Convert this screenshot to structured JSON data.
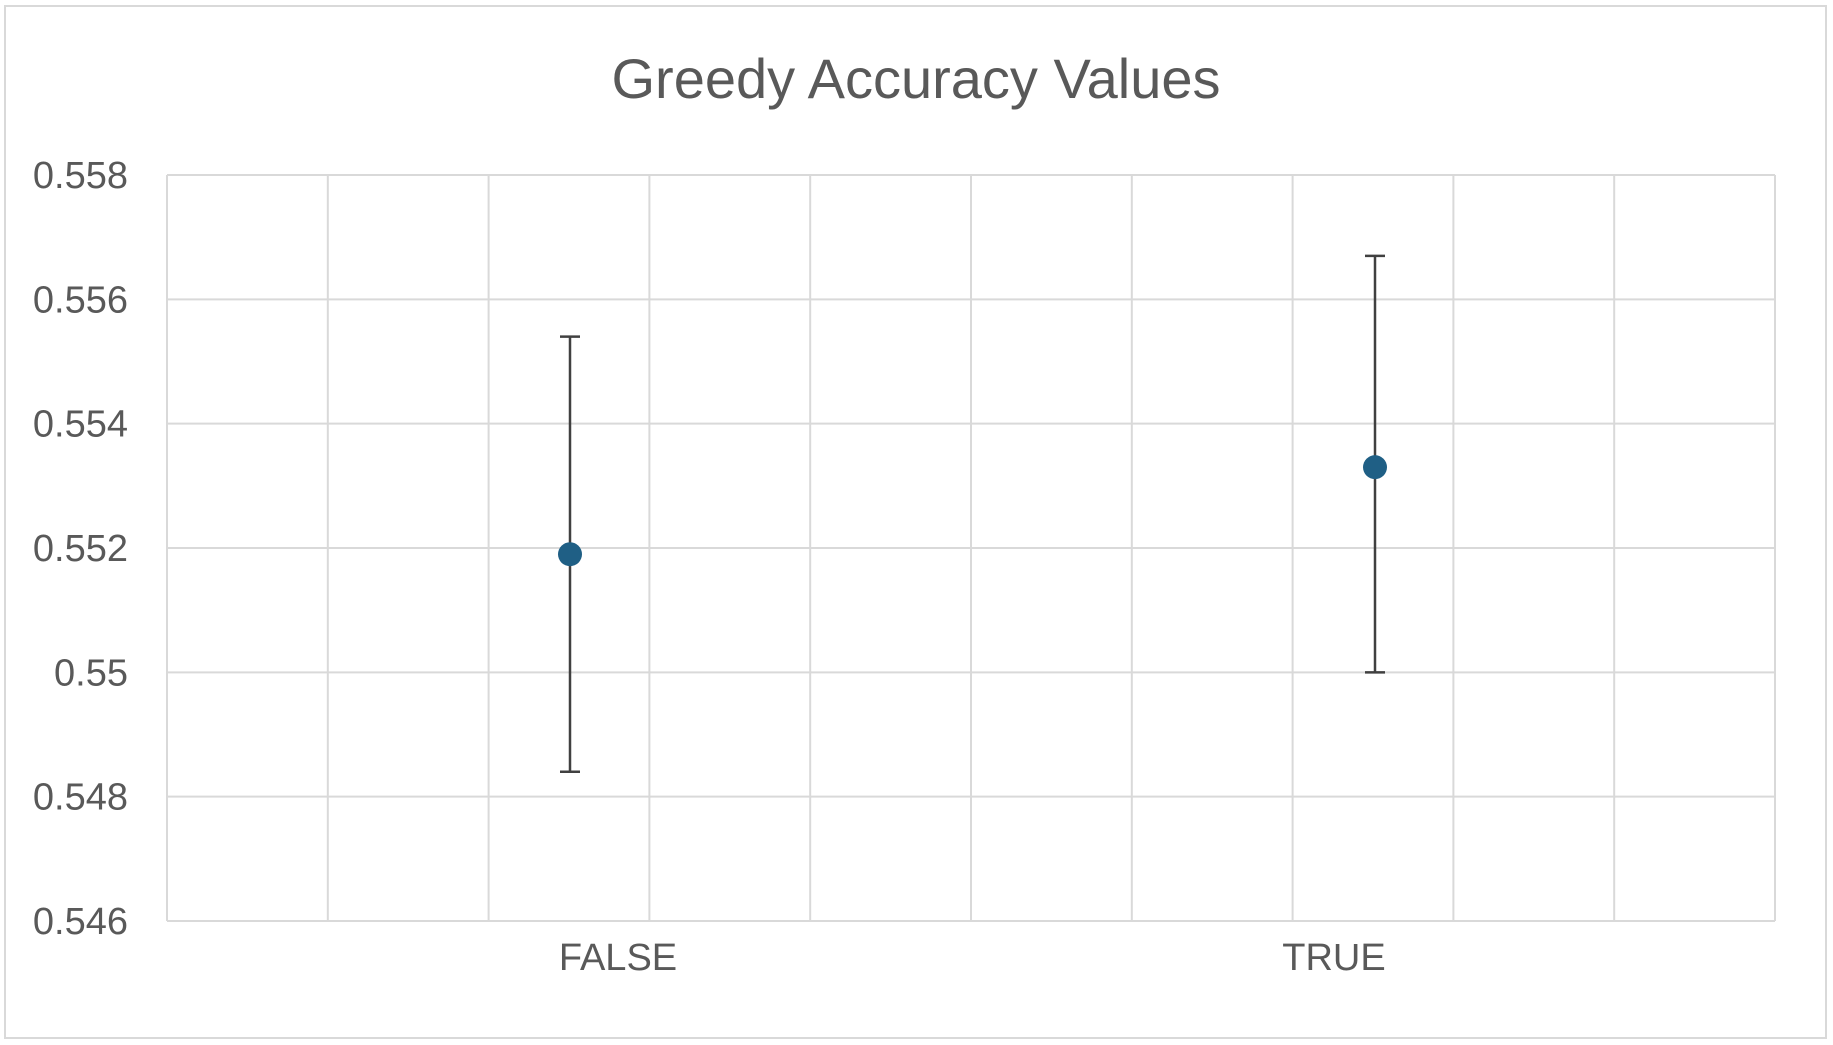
{
  "chart_data": {
    "type": "scatter",
    "title": "Greedy Accuracy Values",
    "xlabel": "",
    "ylabel": "",
    "categories": [
      "FALSE",
      "TRUE"
    ],
    "ylim": [
      0.546,
      0.558
    ],
    "yticks": [
      "0.558",
      "0.556",
      "0.554",
      "0.552",
      "0.55",
      "0.548",
      "0.546"
    ],
    "ytick_values": [
      0.558,
      0.556,
      0.554,
      0.552,
      0.55,
      0.548,
      0.546
    ],
    "vertical_gridlines": 10,
    "grid": true,
    "legend": "none",
    "series": [
      {
        "values": [
          0.5519,
          0.5533
        ],
        "error_low": [
          0.5484,
          0.55
        ],
        "error_high": [
          0.5554,
          0.5567
        ]
      }
    ],
    "marker_color": "#1f5f85",
    "error_bar_color": "#404040",
    "grid_color": "#d9d9d9",
    "text_color": "#595959"
  }
}
